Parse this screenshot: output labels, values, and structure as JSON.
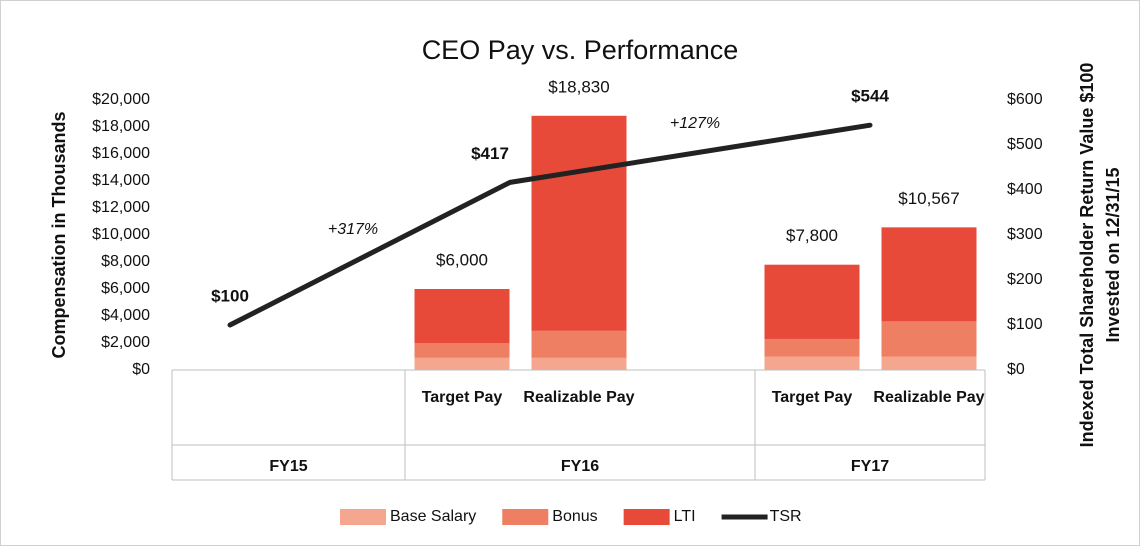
{
  "chart_data": {
    "type": "bar",
    "stacked": true,
    "title": "CEO Pay vs. Performance",
    "y_label": "Compensation in Thousands",
    "y2_label": "Indexed Total Shareholder Return Value $100 Invested on 12/31/15",
    "categories": [
      "Target Pay",
      "Realizable Pay",
      "Target Pay",
      "Realizable Pay"
    ],
    "groups": [
      "FY15",
      "FY16",
      "FY17"
    ],
    "series": [
      {
        "name": "Base Salary",
        "color": "#f4a68e",
        "values": [
          900,
          900,
          1000,
          1000
        ]
      },
      {
        "name": "Bonus",
        "color": "#ef7f62",
        "values": [
          1100,
          2000,
          1300,
          2600
        ]
      },
      {
        "name": "LTI",
        "color": "#e84a3a",
        "values": [
          4000,
          15930,
          5500,
          6967
        ]
      }
    ],
    "totals": [
      6000,
      18830,
      7800,
      10567
    ],
    "total_labels": [
      "$6,000",
      "$18,830",
      "$7,800",
      "$10,567"
    ],
    "line": {
      "name": "TSR",
      "color": "#222222",
      "axis": "y2",
      "categories": [
        "FY15",
        "FY16",
        "FY17"
      ],
      "values": [
        100,
        417,
        544
      ],
      "value_labels": [
        "$100",
        "$417",
        "$544"
      ]
    },
    "annotations": [
      "+317%",
      "+127%"
    ],
    "ylim": [
      0,
      20000
    ],
    "yticks": [
      {
        "value": 0,
        "label": "$0"
      },
      {
        "value": 2000,
        "label": "$2,000"
      },
      {
        "value": 4000,
        "label": "$4,000"
      },
      {
        "value": 6000,
        "label": "$6,000"
      },
      {
        "value": 8000,
        "label": "$8,000"
      },
      {
        "value": 10000,
        "label": "$10,000"
      },
      {
        "value": 12000,
        "label": "$12,000"
      },
      {
        "value": 14000,
        "label": "$14,000"
      },
      {
        "value": 16000,
        "label": "$16,000"
      },
      {
        "value": 18000,
        "label": "$18,000"
      },
      {
        "value": 20000,
        "label": "$20,000"
      }
    ],
    "y2lim": [
      0,
      600
    ],
    "y2ticks": [
      {
        "value": 0,
        "label": "$0"
      },
      {
        "value": 100,
        "label": "$100"
      },
      {
        "value": 200,
        "label": "$200"
      },
      {
        "value": 300,
        "label": "$300"
      },
      {
        "value": 400,
        "label": "$400"
      },
      {
        "value": 500,
        "label": "$500"
      },
      {
        "value": 600,
        "label": "$600"
      }
    ],
    "legend": "bottom"
  }
}
